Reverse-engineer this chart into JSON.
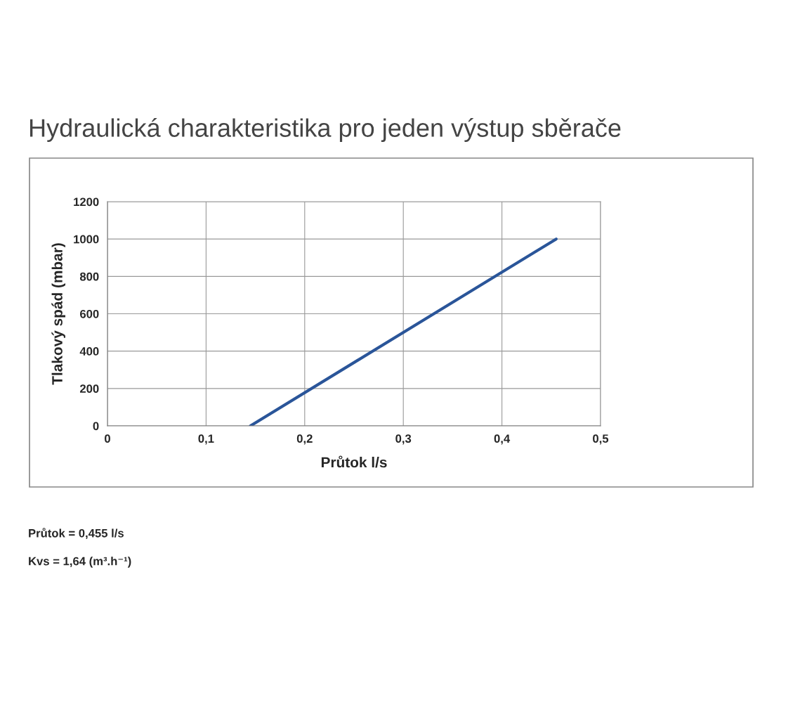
{
  "chart_data": {
    "type": "line",
    "title": "Hydraulická charakteristika pro jeden výstup sběrače",
    "xlabel": "Průtok l/s",
    "ylabel": "Tlakový spád (mbar)",
    "x": [
      0.145,
      0.455
    ],
    "series": [
      {
        "color": "#2a5599",
        "values": [
          0,
          1000
        ]
      }
    ],
    "xlim": [
      0,
      0.5
    ],
    "xticks": [
      0,
      {
        "value": 0.1,
        "label": "0,1"
      },
      {
        "value": 0.2,
        "label": "0,2"
      },
      {
        "value": 0.3,
        "label": "0,3"
      },
      {
        "value": 0.4,
        "label": "0,4"
      },
      {
        "value": 0.5,
        "label": "0,5"
      }
    ],
    "ylim": [
      0,
      1200
    ],
    "yticks": [
      0,
      200,
      400,
      600,
      800,
      1000,
      1200
    ],
    "grid": true,
    "marker": "none",
    "line_style": "solid",
    "annotations": [
      "Průtok = 0,455 l/s",
      "Kvs = 1,64 (m³.h⁻¹)"
    ]
  }
}
